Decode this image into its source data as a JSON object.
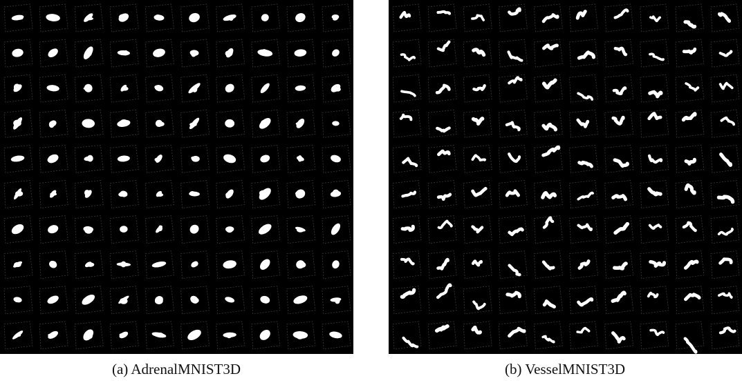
{
  "figure": {
    "panels": [
      {
        "caption": "(a) AdrenalMNIST3D"
      },
      {
        "caption": "(b) VesselMNIST3D"
      }
    ]
  }
}
